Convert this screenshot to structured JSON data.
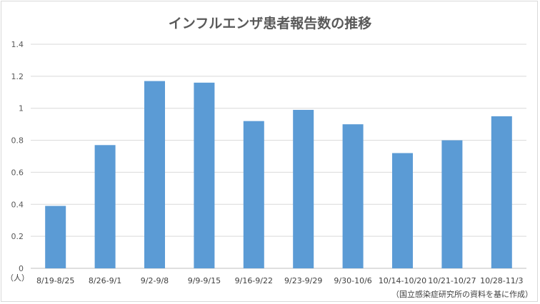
{
  "chart_data": {
    "type": "bar",
    "title": "インフルエンザ患者報告数の推移",
    "categories": [
      "8/19-8/25",
      "8/26-9/1",
      "9/2-9/8",
      "9/9-9/15",
      "9/16-9/22",
      "9/23-9/29",
      "9/30-10/6",
      "10/14-10/20",
      "10/21-10/27",
      "10/28-11/3"
    ],
    "values": [
      0.39,
      0.77,
      1.17,
      1.16,
      0.92,
      0.99,
      0.9,
      0.72,
      0.8,
      0.95
    ],
    "ylim": [
      0,
      1.4
    ],
    "yticks": [
      "0",
      "0.2",
      "0.4",
      "0.6",
      "0.8",
      "1",
      "1.2",
      "1.4"
    ],
    "unit_label": "（人）",
    "source_note": "（国立感染症研究所の資料を基に作成）",
    "bar_color": "#5b9bd5",
    "grid": true
  }
}
